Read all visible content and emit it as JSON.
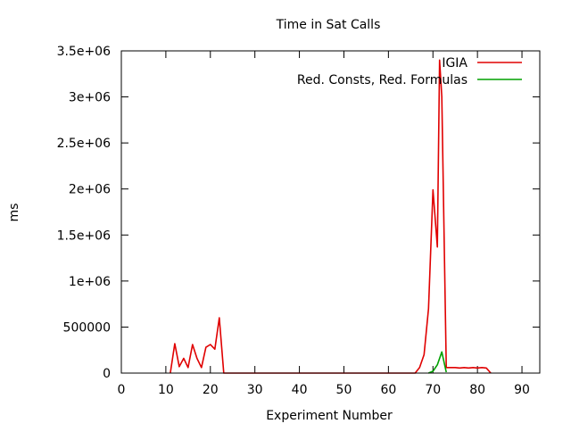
{
  "chart_data": {
    "type": "line",
    "title": "Time in Sat Calls",
    "xlabel": "Experiment Number",
    "ylabel": "ms",
    "xlim": [
      0,
      94
    ],
    "ylim": [
      0,
      3500000
    ],
    "x_ticks": [
      0,
      10,
      20,
      30,
      40,
      50,
      60,
      70,
      80,
      90
    ],
    "x_tick_labels": [
      "0",
      "10",
      "20",
      "30",
      "40",
      "50",
      "60",
      "70",
      "80",
      "90"
    ],
    "y_ticks": [
      0,
      500000,
      1000000,
      1500000,
      2000000,
      2500000,
      3000000,
      3500000
    ],
    "y_tick_labels": [
      "0",
      "500000",
      "1e+06",
      "1.5e+06",
      "2e+06",
      "2.5e+06",
      "3e+06",
      "3.5e+06"
    ],
    "grid": false,
    "legend_position": "top-right",
    "series": [
      {
        "name": "IGIA",
        "color": "#e00000",
        "points": [
          [
            11,
            0
          ],
          [
            12,
            320000
          ],
          [
            13,
            70000
          ],
          [
            14,
            160000
          ],
          [
            15,
            60000
          ],
          [
            16,
            310000
          ],
          [
            17,
            160000
          ],
          [
            18,
            60000
          ],
          [
            19,
            280000
          ],
          [
            20,
            310000
          ],
          [
            21,
            260000
          ],
          [
            22,
            600000
          ],
          [
            23,
            0
          ],
          [
            30,
            0
          ],
          [
            40,
            0
          ],
          [
            44.5,
            0
          ],
          [
            55.5,
            0
          ],
          [
            60,
            0
          ],
          [
            66,
            0
          ],
          [
            67,
            60000
          ],
          [
            68,
            200000
          ],
          [
            69,
            700000
          ],
          [
            70,
            1990000
          ],
          [
            71,
            1370000
          ],
          [
            71.5,
            3400000
          ],
          [
            72,
            3000000
          ],
          [
            73,
            60000
          ],
          [
            74,
            60000
          ],
          [
            75,
            60000
          ],
          [
            76,
            55000
          ],
          [
            77,
            60000
          ],
          [
            78,
            55000
          ],
          [
            79,
            60000
          ],
          [
            80,
            55000
          ],
          [
            81,
            60000
          ],
          [
            82,
            55000
          ],
          [
            83,
            0
          ]
        ]
      },
      {
        "name": "Red. Consts, Red. Formulas",
        "color": "#00a000",
        "points": [
          [
            69,
            0
          ],
          [
            70,
            20000
          ],
          [
            71,
            90000
          ],
          [
            72,
            230000
          ],
          [
            73,
            10000
          ]
        ]
      }
    ]
  }
}
